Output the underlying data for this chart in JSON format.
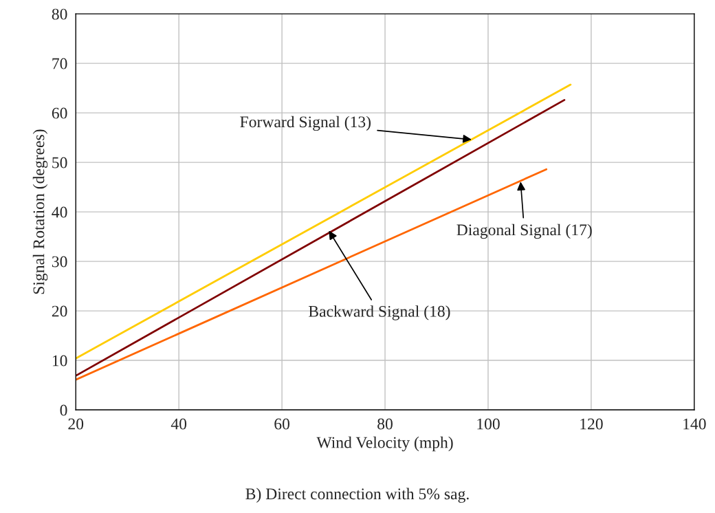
{
  "chart_data": {
    "type": "line",
    "xlabel": "Wind Velocity (mph)",
    "ylabel": "Signal Rotation (degrees)",
    "xlim": [
      20,
      140
    ],
    "xticks": [
      20,
      40,
      60,
      80,
      100,
      120,
      140
    ],
    "ylim": [
      0,
      80
    ],
    "yticks": [
      0,
      10,
      20,
      30,
      40,
      50,
      60,
      70,
      80
    ],
    "grid": true,
    "series": [
      {
        "color": "#ffcc00",
        "x": [
          20,
          116
        ],
        "values": [
          10.4,
          65.7
        ]
      },
      {
        "color": "#800000",
        "x": [
          20,
          114.8
        ],
        "values": [
          6.9,
          62.6
        ]
      },
      {
        "color": "#ff6600",
        "x": [
          20,
          111.3
        ],
        "values": [
          6.1,
          48.6
        ]
      }
    ],
    "annotations": [
      {
        "text": "Forward Signal (13)",
        "x": 96.8,
        "y": 54.6
      },
      {
        "text": "Backward Signal (18)",
        "x": 69.1,
        "y": 36.2
      },
      {
        "text": "Diagonal Signal (17)",
        "x": 106.3,
        "y": 46.1
      },
      "B) Direct connection with 5% sag."
    ]
  }
}
